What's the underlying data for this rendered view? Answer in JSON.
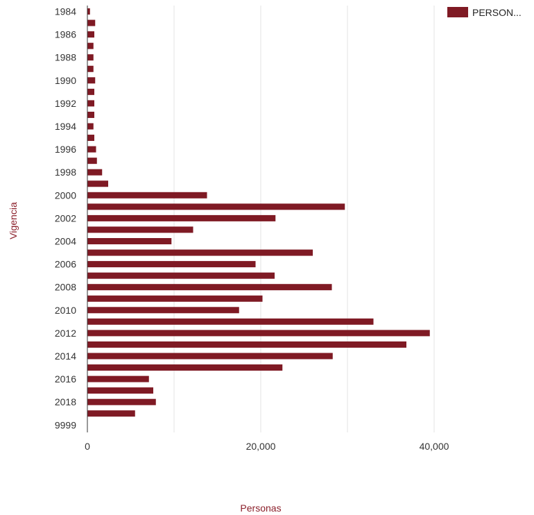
{
  "chart_data": {
    "type": "bar",
    "orientation": "horizontal",
    "xlabel": "Personas",
    "ylabel": "Vigencia",
    "xlim": [
      0,
      50000
    ],
    "xticks": [
      0,
      20000,
      40000
    ],
    "xtick_labels": [
      "0",
      "20,000",
      "40,000"
    ],
    "grid": true,
    "legend_position": "top-right",
    "colors": {
      "bar": "#7f1a24",
      "axis_title": "#8b1f2a",
      "grid": "#e3e3e3"
    },
    "categories": [
      "1984",
      "1985",
      "1986",
      "1987",
      "1988",
      "1989",
      "1990",
      "1991",
      "1992",
      "1993",
      "1994",
      "1995",
      "1996",
      "1997",
      "1998",
      "1999",
      "2000",
      "2001",
      "2002",
      "2003",
      "2004",
      "2005",
      "2006",
      "2007",
      "2008",
      "2009",
      "2010",
      "2011",
      "2012",
      "2013",
      "2014",
      "2015",
      "2016",
      "2017",
      "2018",
      "2019",
      "9999"
    ],
    "category_labels_shown": [
      "1984",
      "",
      "1986",
      "",
      "1988",
      "",
      "1990",
      "",
      "1992",
      "",
      "1994",
      "",
      "1996",
      "",
      "1998",
      "",
      "2000",
      "",
      "2002",
      "",
      "2004",
      "",
      "2006",
      "",
      "2008",
      "",
      "2010",
      "",
      "2012",
      "",
      "2014",
      "",
      "2016",
      "",
      "2018",
      "",
      "9999"
    ],
    "series": [
      {
        "name": "PERSON...",
        "values": [
          300,
          900,
          800,
          700,
          700,
          700,
          900,
          800,
          800,
          800,
          700,
          800,
          1000,
          1100,
          1700,
          2400,
          13800,
          29700,
          21700,
          12200,
          9700,
          26000,
          19400,
          21600,
          28200,
          20200,
          17500,
          33000,
          39500,
          36800,
          28300,
          22500,
          7100,
          7600,
          7900,
          5500,
          0
        ]
      }
    ]
  }
}
